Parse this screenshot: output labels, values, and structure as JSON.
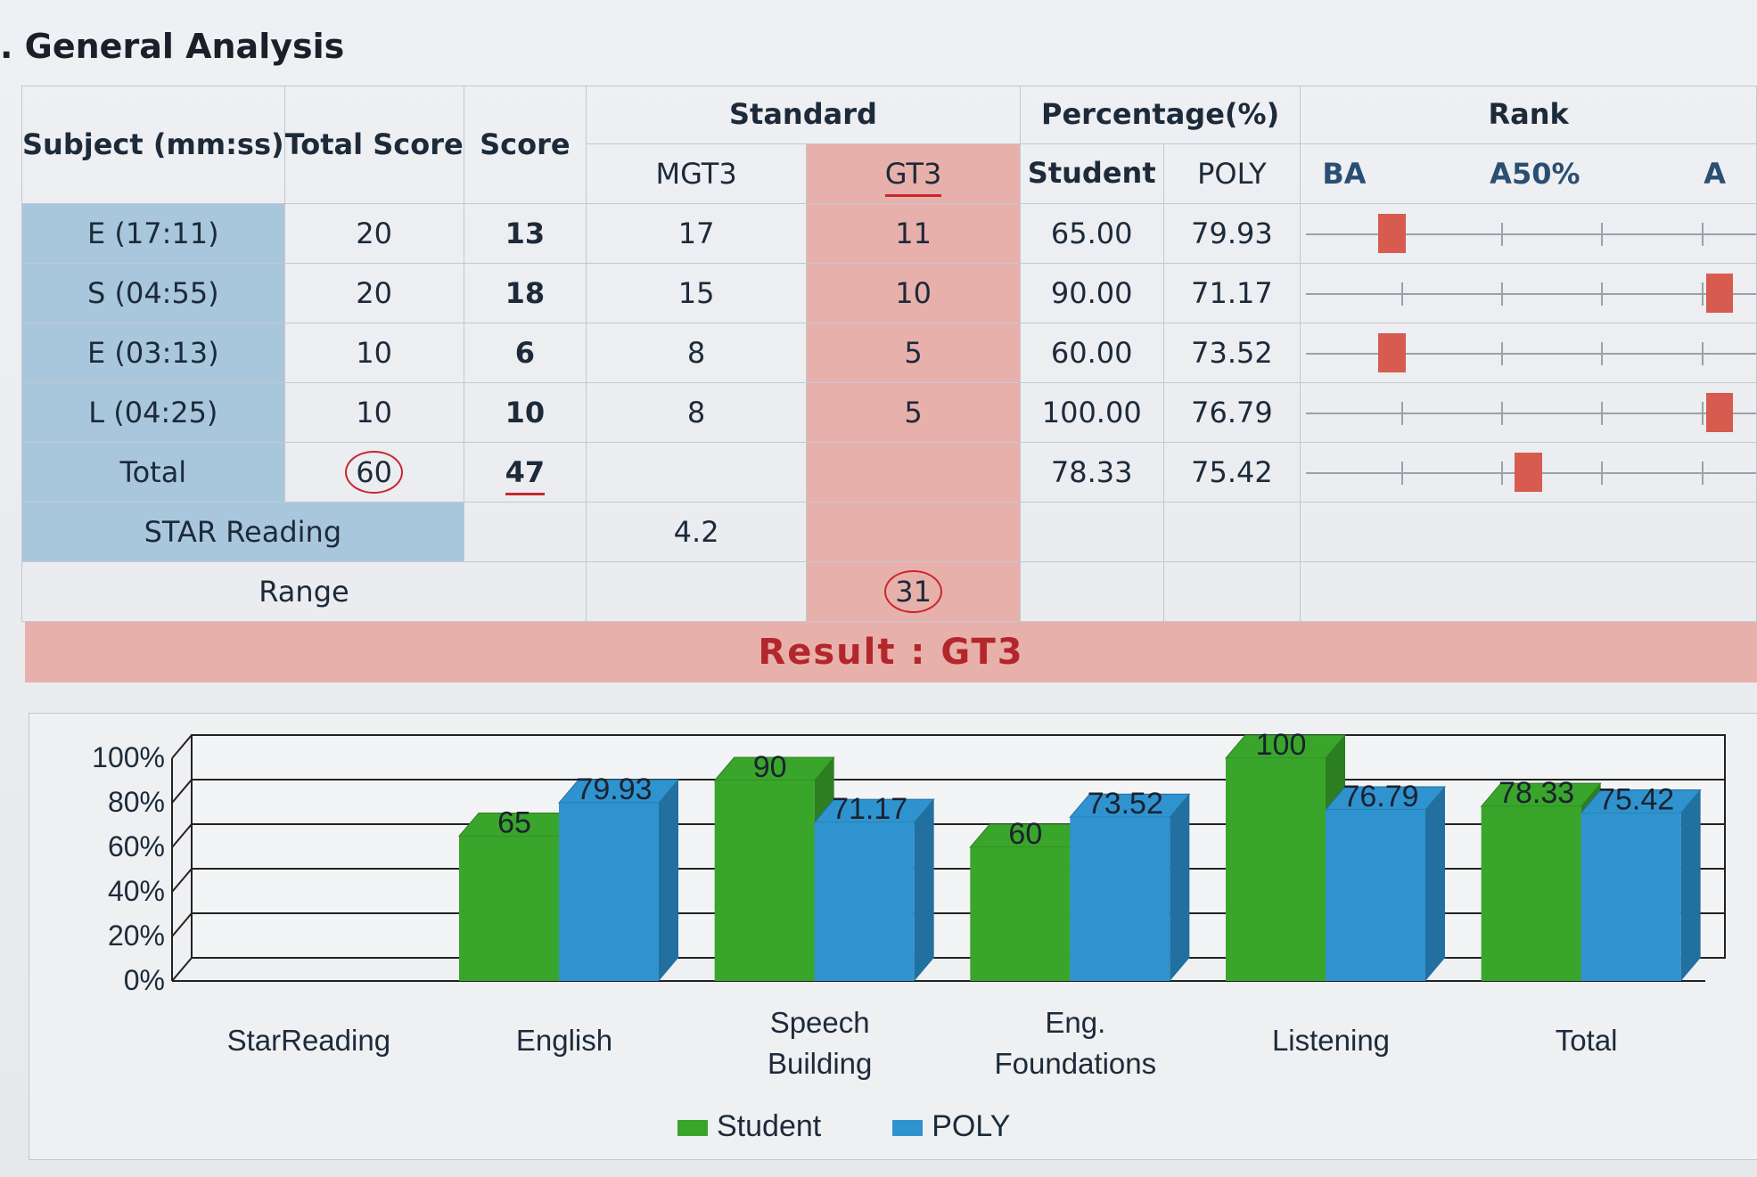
{
  "heading": ". General Analysis",
  "table": {
    "headers": {
      "subject": "Subject (mm:ss)",
      "total_score": "Total Score",
      "score": "Score",
      "standard": "Standard",
      "mgt3": "MGT3",
      "gt3": "GT3",
      "percentage": "Percentage(%)",
      "student": "Student",
      "poly": "POLY",
      "rank": "Rank",
      "rank_ba": "BA",
      "rank_a50": "A50%",
      "rank_extra": "A"
    },
    "rows": [
      {
        "subject": "E (17:11)",
        "total": "20",
        "score": "13",
        "mgt3": "17",
        "gt3": "11",
        "student": "65.00",
        "poly": "79.93",
        "rank_pct": 0.2
      },
      {
        "subject": "S (04:55)",
        "total": "20",
        "score": "18",
        "mgt3": "15",
        "gt3": "10",
        "student": "90.00",
        "poly": "71.17",
        "rank_pct": 0.92
      },
      {
        "subject": "E (03:13)",
        "total": "10",
        "score": "6",
        "mgt3": "8",
        "gt3": "5",
        "student": "60.00",
        "poly": "73.52",
        "rank_pct": 0.2
      },
      {
        "subject": "L (04:25)",
        "total": "10",
        "score": "10",
        "mgt3": "8",
        "gt3": "5",
        "student": "100.00",
        "poly": "76.79",
        "rank_pct": 0.92
      },
      {
        "subject": "Total",
        "total": "60",
        "score": "47",
        "mgt3": "",
        "gt3": "",
        "student": "78.33",
        "poly": "75.42",
        "rank_pct": 0.5
      }
    ],
    "star_reading": {
      "label": "STAR Reading",
      "value": "4.2"
    },
    "range": {
      "label": "Range",
      "gt3": "31"
    }
  },
  "result": "Result : GT3",
  "chart_data": {
    "type": "bar",
    "categories": [
      "StarReading",
      "English",
      "Speech Building",
      "Eng. Foundations",
      "Listening",
      "Total"
    ],
    "series": [
      {
        "name": "Student",
        "values": [
          null,
          65,
          90,
          60,
          100,
          78.33
        ],
        "labels": [
          "",
          "65",
          "90",
          "60",
          "100",
          "78.33"
        ],
        "color": "#3aa52b"
      },
      {
        "name": "POLY",
        "values": [
          null,
          79.93,
          71.17,
          73.52,
          76.79,
          75.42
        ],
        "labels": [
          "",
          "79.93",
          "71.17",
          "73.52",
          "76.79",
          "75.42"
        ],
        "color": "#2f93cf"
      }
    ],
    "yticks": [
      "0%",
      "20%",
      "40%",
      "60%",
      "80%",
      "100%"
    ],
    "ylim": [
      0,
      100
    ],
    "legend": "bottom"
  }
}
